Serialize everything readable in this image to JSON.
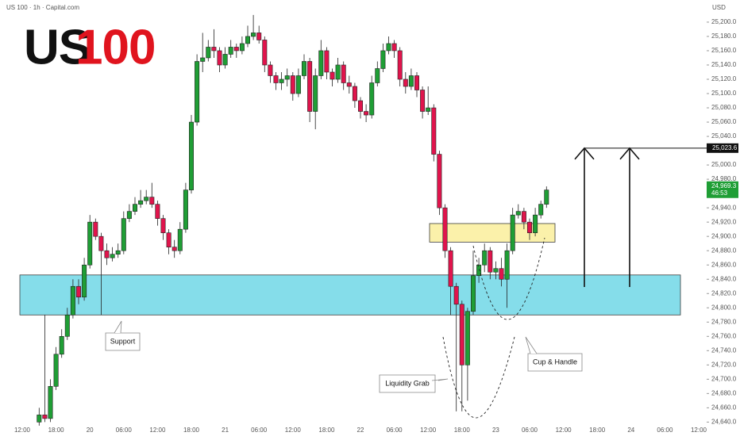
{
  "chart_data": {
    "type": "candlestick",
    "header": "US 100 · 1h · Capital.com",
    "title_parts": [
      "US",
      "100"
    ],
    "title_colors": [
      "#111111",
      "#e0141e"
    ],
    "y_unit": "USD",
    "up_color": "#1f9e35",
    "down_color": "#e0144c",
    "ylim": [
      24636,
      25231
    ],
    "yticks": [
      {
        "value": 24640,
        "label": "24,640.0"
      },
      {
        "value": 24660,
        "label": "24,660.0"
      },
      {
        "value": 24680,
        "label": "24,680.0"
      },
      {
        "value": 24700,
        "label": "24,700.0"
      },
      {
        "value": 24720,
        "label": "24,720.0"
      },
      {
        "value": 24740,
        "label": "24,740.0"
      },
      {
        "value": 24760,
        "label": "24,760.0"
      },
      {
        "value": 24780,
        "label": "24,780.0"
      },
      {
        "value": 24800,
        "label": "24,800.0"
      },
      {
        "value": 24820,
        "label": "24,820.0"
      },
      {
        "value": 24840,
        "label": "24,840.0"
      },
      {
        "value": 24860,
        "label": "24,860.0"
      },
      {
        "value": 24880,
        "label": "24,880.0"
      },
      {
        "value": 24900,
        "label": "24,900.0"
      },
      {
        "value": 24920,
        "label": "24,920.0"
      },
      {
        "value": 24940,
        "label": "24,940.0"
      },
      {
        "value": 24960,
        "label": "24,960.0"
      },
      {
        "value": 24980,
        "label": "24,980.0"
      },
      {
        "value": 25000,
        "label": "25,000.0"
      },
      {
        "value": 25020,
        "label": "25,020.0"
      },
      {
        "value": 25040,
        "label": "25,040.0"
      },
      {
        "value": 25060,
        "label": "25,060.0"
      },
      {
        "value": 25080,
        "label": "25,080.0"
      },
      {
        "value": 25100,
        "label": "25,100.0"
      },
      {
        "value": 25120,
        "label": "25,120.0"
      },
      {
        "value": 25140,
        "label": "25,140.0"
      },
      {
        "value": 25160,
        "label": "25,160.0"
      },
      {
        "value": 25180,
        "label": "25,180.0"
      },
      {
        "value": 25200,
        "label": "25,200.0"
      }
    ],
    "categories": [
      "12:00",
      null,
      null,
      null,
      null,
      null,
      "18:00",
      null,
      null,
      null,
      null,
      null,
      "20",
      null,
      null,
      null,
      null,
      null,
      "06:00",
      null,
      null,
      null,
      null,
      null,
      "12:00",
      null,
      null,
      null,
      null,
      null,
      "18:00",
      null,
      null,
      null,
      null,
      null,
      "21",
      null,
      null,
      null,
      null,
      null,
      "06:00",
      null,
      null,
      null,
      null,
      null,
      "12:00",
      null,
      null,
      null,
      null,
      null,
      "18:00",
      null,
      null,
      null,
      null,
      null,
      "22",
      null,
      null,
      null,
      null,
      null,
      "06:00",
      null,
      null,
      null,
      null,
      null,
      "12:00",
      null,
      null,
      null,
      null,
      null,
      "18:00",
      null,
      null,
      null,
      null,
      null,
      "23",
      null,
      null,
      null,
      null,
      null,
      "06:00",
      null,
      null,
      null,
      null,
      null,
      "12:00",
      null,
      null,
      null,
      null,
      null,
      "18:00",
      null,
      null,
      null,
      null,
      null,
      "24",
      null,
      null,
      null,
      null,
      null,
      "06:00",
      null,
      null,
      null,
      null,
      null,
      "12:00"
    ],
    "open": [
      null,
      null,
      null,
      24640,
      24650,
      24645,
      24690,
      24735,
      24760,
      24790,
      24830,
      24815,
      24860,
      24920,
      24900,
      24880,
      24870,
      24875,
      24880,
      24925,
      24935,
      24945,
      24950,
      24955,
      24945,
      24925,
      24905,
      24885,
      24880,
      24910,
      24965,
      25060,
      25145,
      25150,
      25165,
      25160,
      25140,
      25155,
      25165,
      25160,
      25170,
      25180,
      25185,
      25175,
      25140,
      25125,
      25115,
      25120,
      25125,
      25100,
      25125,
      25145,
      25075,
      25125,
      25160,
      25130,
      25120,
      25140,
      25115,
      25110,
      25090,
      25075,
      25070,
      25115,
      25135,
      25160,
      25170,
      25160,
      25120,
      25110,
      25125,
      25105,
      25075,
      25080,
      25015,
      24940,
      24880,
      24830,
      24805,
      24720,
      24795,
      24845,
      24860,
      24880,
      24850,
      24855,
      24840,
      24880,
      24930,
      24935,
      24920,
      24905,
      24930,
      24945,
      null,
      null,
      null,
      null,
      null,
      null,
      null,
      null,
      null,
      null,
      null,
      null,
      null,
      null,
      null,
      null,
      null,
      null,
      null,
      null,
      null,
      null,
      null,
      null,
      null,
      null,
      null
    ],
    "high": [
      null,
      null,
      null,
      24660,
      24790,
      24700,
      24745,
      24770,
      24800,
      24840,
      24840,
      24870,
      24930,
      24925,
      24905,
      24890,
      24885,
      24890,
      24935,
      24945,
      24955,
      24965,
      24965,
      24975,
      24950,
      24930,
      24910,
      24895,
      24920,
      24975,
      25070,
      25155,
      25185,
      25175,
      25190,
      25165,
      25165,
      25175,
      25170,
      25180,
      25195,
      25210,
      25195,
      25180,
      25145,
      25130,
      25130,
      25135,
      25130,
      25135,
      25155,
      25150,
      25135,
      25175,
      25165,
      25135,
      25150,
      25145,
      25125,
      25115,
      25095,
      25085,
      25125,
      25145,
      25170,
      25180,
      25175,
      25165,
      25130,
      25135,
      25130,
      25110,
      25110,
      25085,
      25020,
      24945,
      24885,
      24835,
      24810,
      24800,
      24880,
      24870,
      24890,
      24885,
      24865,
      24870,
      24890,
      24940,
      24945,
      24940,
      24925,
      24940,
      24950,
      24970,
      null,
      null,
      null,
      null,
      null,
      null,
      null,
      null,
      null,
      null,
      null,
      null,
      null,
      null,
      null,
      null,
      null,
      null,
      null,
      null,
      null,
      null,
      null,
      null,
      null,
      null,
      null
    ],
    "low": [
      null,
      null,
      null,
      24635,
      24640,
      24640,
      24685,
      24730,
      24755,
      24785,
      24805,
      24810,
      24855,
      24895,
      24790,
      24860,
      24865,
      24870,
      24875,
      24920,
      24930,
      24940,
      24945,
      24940,
      24915,
      24895,
      24875,
      24870,
      24875,
      24905,
      24960,
      25055,
      25130,
      25145,
      25150,
      25130,
      25135,
      25150,
      25150,
      25155,
      25165,
      25175,
      25170,
      25130,
      25115,
      25105,
      25105,
      25110,
      25090,
      25095,
      25120,
      25060,
      25050,
      25120,
      25120,
      25110,
      25115,
      25105,
      25100,
      25080,
      25065,
      25060,
      25065,
      25110,
      25130,
      25155,
      25150,
      25110,
      25100,
      25105,
      25095,
      25065,
      25070,
      25005,
      24930,
      24870,
      24790,
      24655,
      24655,
      24670,
      24790,
      24835,
      24850,
      24840,
      24840,
      24830,
      24800,
      24875,
      24925,
      24910,
      24895,
      24900,
      24925,
      24940,
      null,
      null,
      null,
      null,
      null,
      null,
      null,
      null,
      null,
      null,
      null,
      null,
      null,
      null,
      null,
      null,
      null,
      null,
      null,
      null,
      null,
      null,
      null,
      null,
      null,
      null,
      null
    ],
    "close": [
      null,
      null,
      null,
      24650,
      24645,
      24690,
      24735,
      24760,
      24790,
      24830,
      24815,
      24860,
      24920,
      24900,
      24880,
      24870,
      24875,
      24880,
      24925,
      24935,
      24945,
      24950,
      24955,
      24945,
      24925,
      24905,
      24885,
      24880,
      24910,
      24965,
      25060,
      25145,
      25150,
      25165,
      25160,
      25140,
      25155,
      25165,
      25160,
      25170,
      25180,
      25185,
      25175,
      25140,
      25125,
      25115,
      25120,
      25125,
      25100,
      25125,
      25145,
      25075,
      25125,
      25160,
      25130,
      25120,
      25140,
      25115,
      25110,
      25090,
      25075,
      25070,
      25115,
      25135,
      25160,
      25170,
      25160,
      25120,
      25110,
      25125,
      25105,
      25075,
      25080,
      25015,
      24940,
      24880,
      24830,
      24805,
      24720,
      24795,
      24845,
      24860,
      24880,
      24850,
      24855,
      24840,
      24880,
      24930,
      24935,
      24920,
      24905,
      24930,
      24945,
      24965,
      null,
      null,
      null,
      null,
      null,
      null,
      null,
      null,
      null,
      null,
      null,
      null,
      null,
      null,
      null,
      null,
      null,
      null,
      null,
      null,
      null,
      null,
      null,
      null,
      null,
      null,
      null
    ],
    "zones": [
      {
        "from": 24790,
        "to": 24846,
        "color": "#7fdce9"
      },
      {
        "from": 24892,
        "to": 24918,
        "color": "#fbf1a6"
      }
    ],
    "target": {
      "value": 25023.6,
      "label": "25,023.6"
    },
    "last_price": {
      "value": 24969.3,
      "label": "24,969.3"
    },
    "countdown": "46:53",
    "annotations": [
      "Support",
      "Liquidity Grab",
      "Cup & Handle"
    ]
  }
}
